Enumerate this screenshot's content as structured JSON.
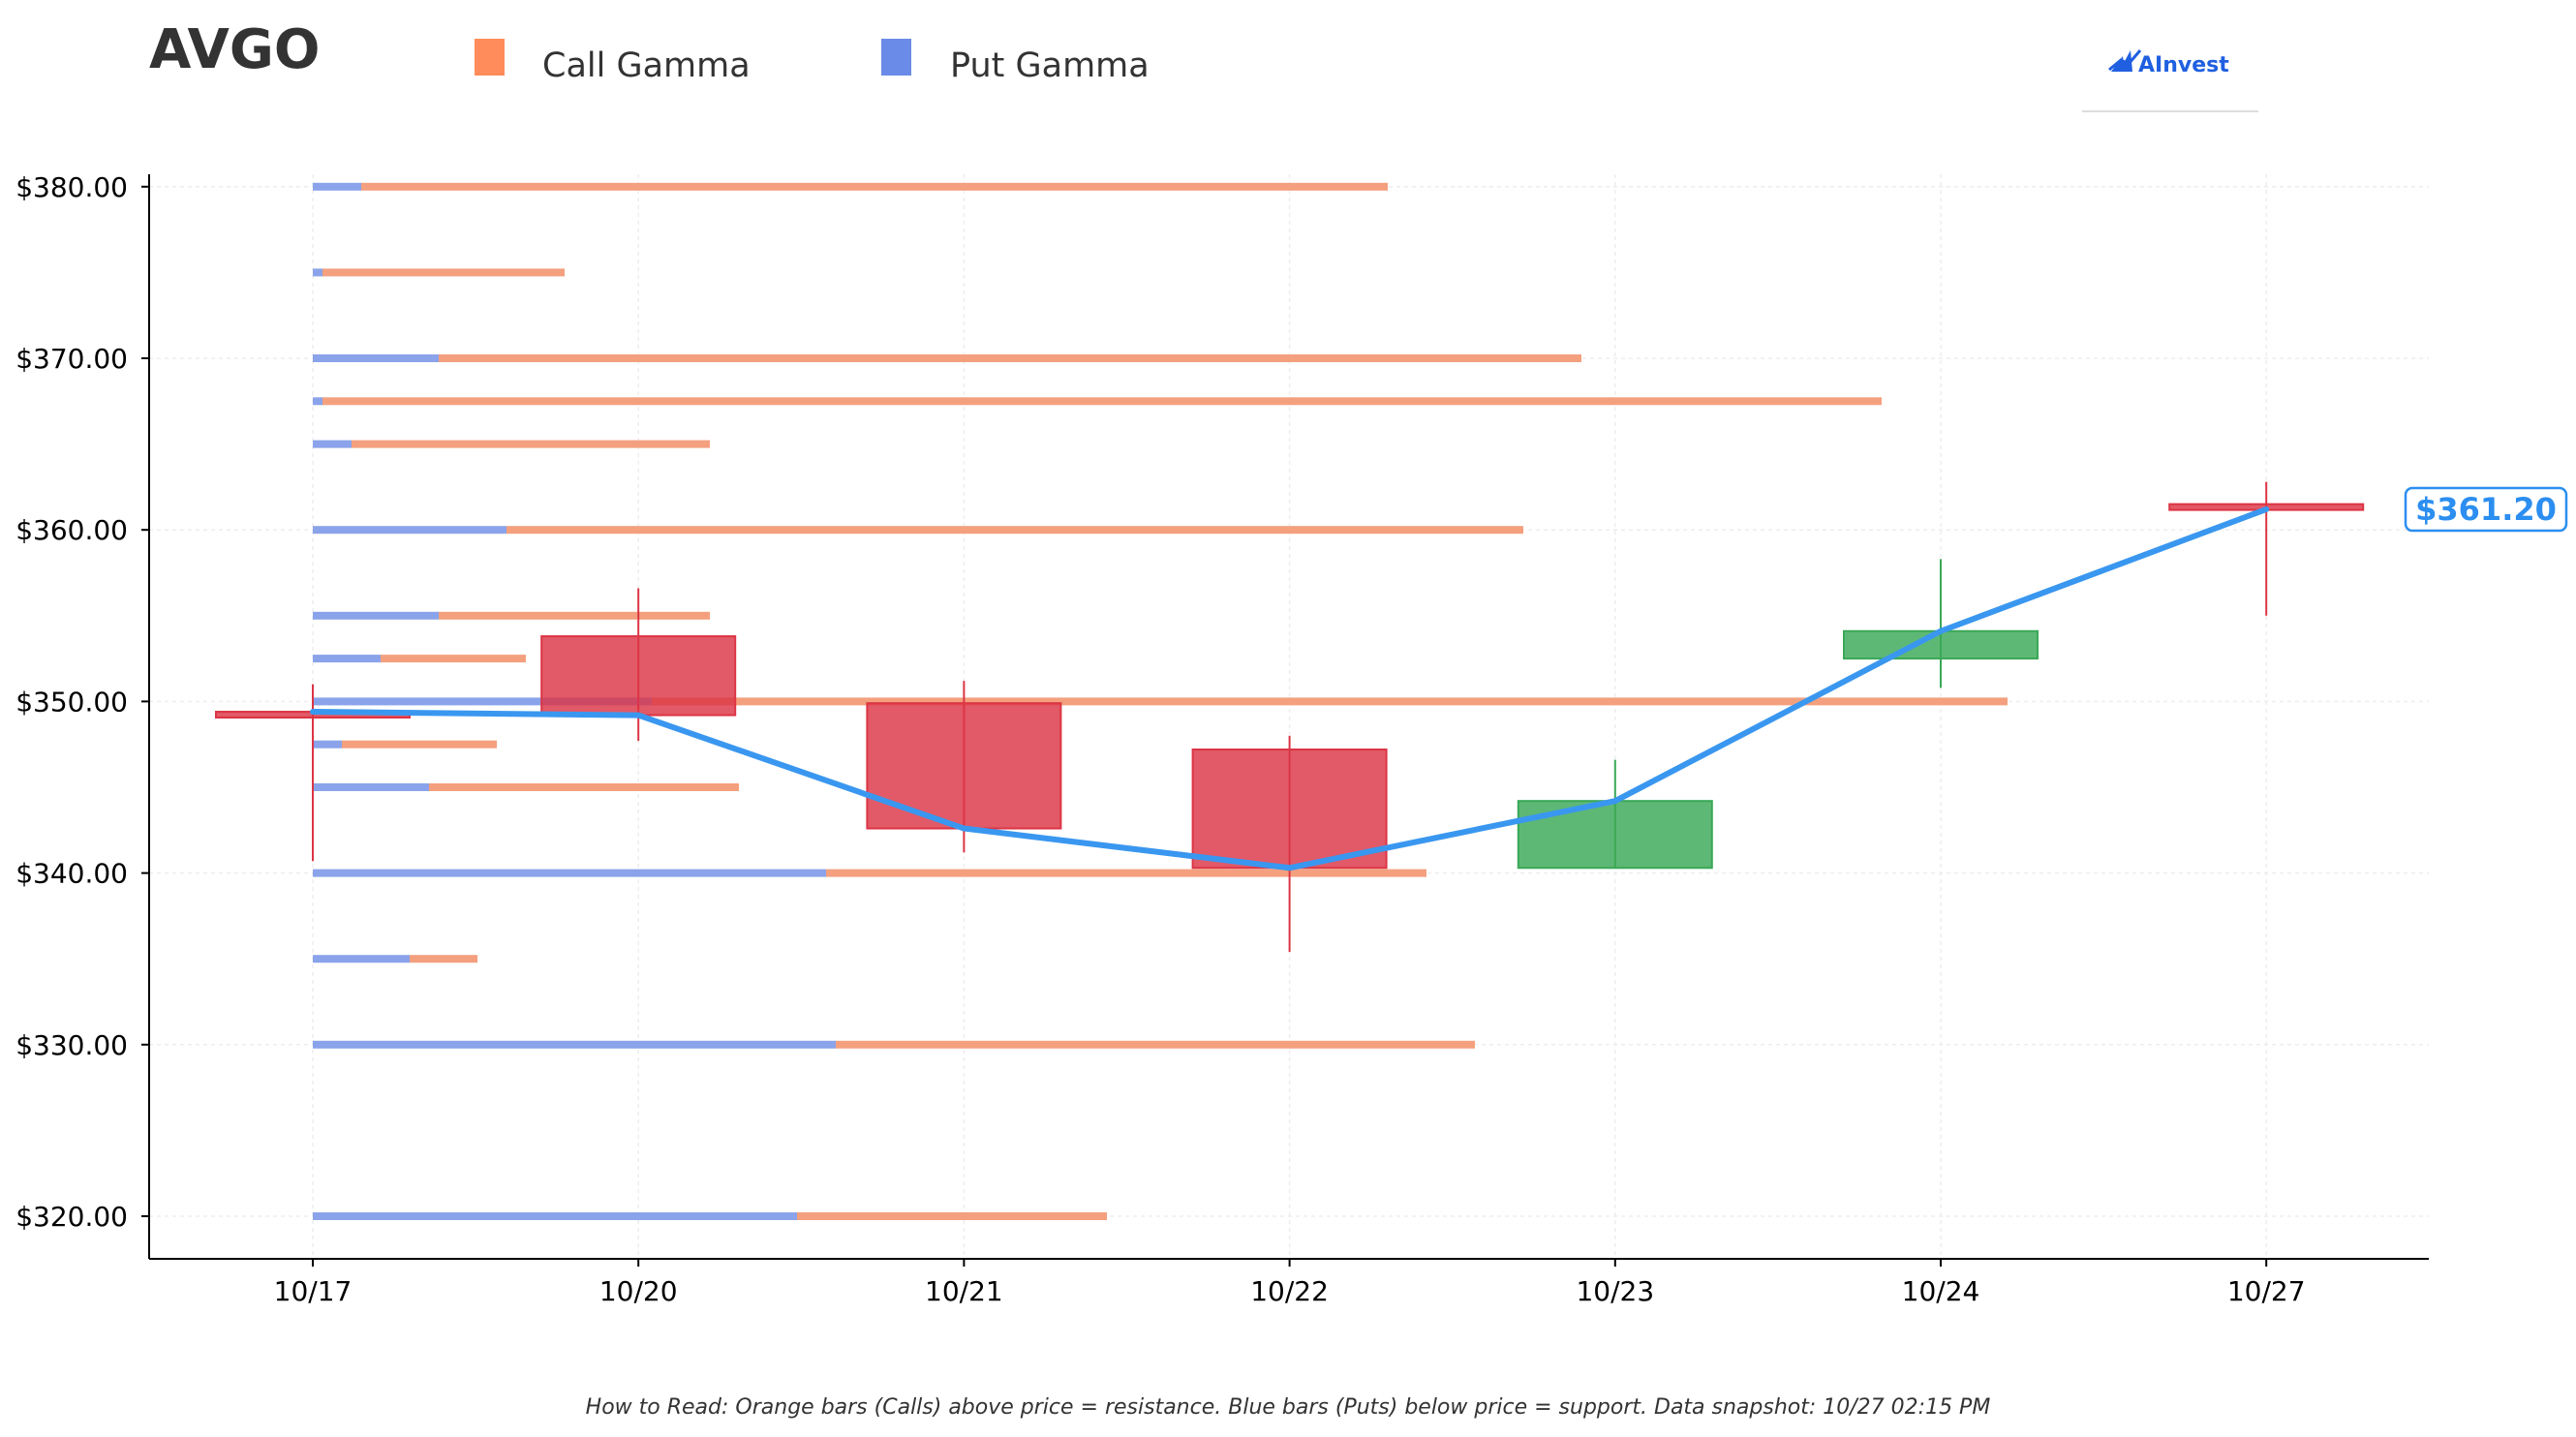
{
  "ticker": "AVGO",
  "legend": [
    {
      "label": "Call Gamma",
      "color": "#ff8c5a"
    },
    {
      "label": "Put Gamma",
      "color": "#6b8be8"
    }
  ],
  "logo": {
    "text": "AInvest",
    "icon": "aInvest-logo-icon"
  },
  "current_price_label": "$361.20",
  "footnote": "How to Read: Orange bars (Calls) above price = resistance. Blue bars (Puts) below price = support. Data snapshot: 10/27 02:15 PM",
  "colors": {
    "call": "#f4a07e",
    "put": "#8aa3ea",
    "up": "#3aa857",
    "down": "#dc3545",
    "price_line": "#3a97f0",
    "grid": "#eeeeee"
  },
  "chart_data": {
    "type": "candlestick",
    "ylim": [
      317.5,
      382
    ],
    "y_ticks": [
      320,
      330,
      340,
      350,
      360,
      370,
      380
    ],
    "y_tick_labels": [
      "$320.00",
      "$330.00",
      "$340.00",
      "$350.00",
      "$360.00",
      "$370.00",
      "$380.00"
    ],
    "categories": [
      "10/17",
      "10/20",
      "10/21",
      "10/22",
      "10/23",
      "10/24",
      "10/27"
    ],
    "candles": [
      {
        "date": "10/17",
        "open": 349.4,
        "high": 351.0,
        "low": 340.7,
        "close": 349.4
      },
      {
        "date": "10/20",
        "open": 353.8,
        "high": 356.6,
        "low": 347.7,
        "close": 349.2
      },
      {
        "date": "10/21",
        "open": 349.9,
        "high": 351.2,
        "low": 341.2,
        "close": 342.6
      },
      {
        "date": "10/22",
        "open": 347.2,
        "high": 348.0,
        "low": 335.4,
        "close": 340.3
      },
      {
        "date": "10/23",
        "open": 340.3,
        "high": 346.6,
        "low": 340.3,
        "close": 344.2
      },
      {
        "date": "10/24",
        "open": 352.5,
        "high": 358.3,
        "low": 350.8,
        "close": 354.1
      },
      {
        "date": "10/27",
        "open": 361.5,
        "high": 362.8,
        "low": 355.0,
        "close": 361.2
      }
    ],
    "price_line": [
      349.4,
      349.2,
      342.6,
      340.3,
      344.2,
      354.1,
      361.2
    ],
    "gamma_levels": [
      {
        "strike": 380.0,
        "put": 0.05,
        "call": 1.06
      },
      {
        "strike": 375.0,
        "put": 0.01,
        "call": 0.25
      },
      {
        "strike": 370.0,
        "put": 0.13,
        "call": 1.18
      },
      {
        "strike": 367.5,
        "put": 0.01,
        "call": 1.61
      },
      {
        "strike": 365.0,
        "put": 0.04,
        "call": 0.37
      },
      {
        "strike": 360.0,
        "put": 0.2,
        "call": 1.05
      },
      {
        "strike": 355.0,
        "put": 0.13,
        "call": 0.28
      },
      {
        "strike": 352.5,
        "put": 0.07,
        "call": 0.15
      },
      {
        "strike": 350.0,
        "put": 0.35,
        "call": 1.4
      },
      {
        "strike": 347.5,
        "put": 0.03,
        "call": 0.16
      },
      {
        "strike": 345.0,
        "put": 0.12,
        "call": 0.32
      },
      {
        "strike": 340.0,
        "put": 0.53,
        "call": 0.62
      },
      {
        "strike": 335.0,
        "put": 0.1,
        "call": 0.07
      },
      {
        "strike": 330.0,
        "put": 0.54,
        "call": 0.66
      },
      {
        "strike": 320.0,
        "put": 0.5,
        "call": 0.32
      }
    ]
  }
}
